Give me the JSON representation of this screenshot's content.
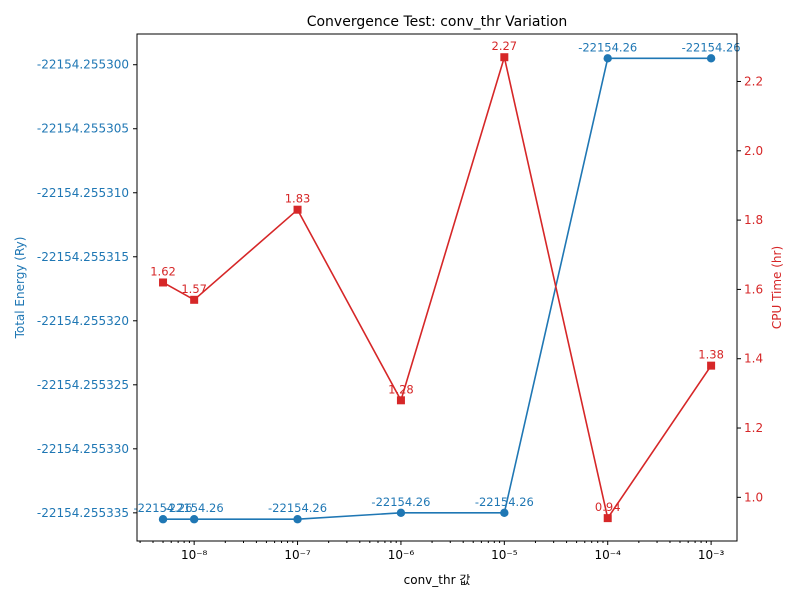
{
  "chart_data": {
    "type": "line",
    "title": "Convergence Test: conv_thr Variation",
    "xlabel": "conv_thr 값",
    "x_scale": "log",
    "x_tick_labels": [
      "10⁻⁸",
      "10⁻⁷",
      "10⁻⁶",
      "10⁻⁵",
      "10⁻⁴",
      "10⁻³"
    ],
    "x": [
      5e-09,
      1e-08,
      1e-07,
      1e-06,
      1e-05,
      0.0001,
      0.001
    ],
    "colors": {
      "energy": "#1f77b4",
      "cpu": "#d62728"
    },
    "series": [
      {
        "axis": "left",
        "marker": "circle",
        "values": [
          -22154.2553355,
          -22154.2553355,
          -22154.2553355,
          -22154.255335,
          -22154.255335,
          -22154.2552995,
          -22154.2552995
        ],
        "labels": [
          "-22154.26",
          "-22154.26",
          "-22154.26",
          "-22154.26",
          "-22154.26",
          "-22154.26",
          "-22154.26"
        ]
      },
      {
        "axis": "right",
        "marker": "square",
        "values": [
          1.62,
          1.57,
          1.83,
          1.28,
          2.27,
          0.94,
          1.38
        ],
        "labels": [
          "1.62",
          "1.57",
          "1.83",
          "1.28",
          "2.27",
          "0.94",
          "1.38"
        ]
      }
    ],
    "y_left": {
      "label": "Total Energy (Ry)",
      "ticks": [
        -22154.2553,
        -22154.255305,
        -22154.25531,
        -22154.255315,
        -22154.25532,
        -22154.255325,
        -22154.25533,
        -22154.255335
      ],
      "tick_labels": [
        "-22154.255300",
        "-22154.255305",
        "-22154.255310",
        "-22154.255315",
        "-22154.255320",
        "-22154.255325",
        "-22154.255330",
        "-22154.255335"
      ],
      "ylim": [
        -22154.2553372,
        -22154.2552976
      ]
    },
    "y_right": {
      "label": "CPU Time (hr)",
      "ticks": [
        1.0,
        1.2,
        1.4,
        1.6,
        1.8,
        2.0,
        2.2
      ],
      "tick_labels": [
        "1.0",
        "1.2",
        "1.4",
        "1.6",
        "1.8",
        "2.0",
        "2.2"
      ],
      "ylim": [
        0.874,
        2.337
      ]
    },
    "grid": false
  }
}
